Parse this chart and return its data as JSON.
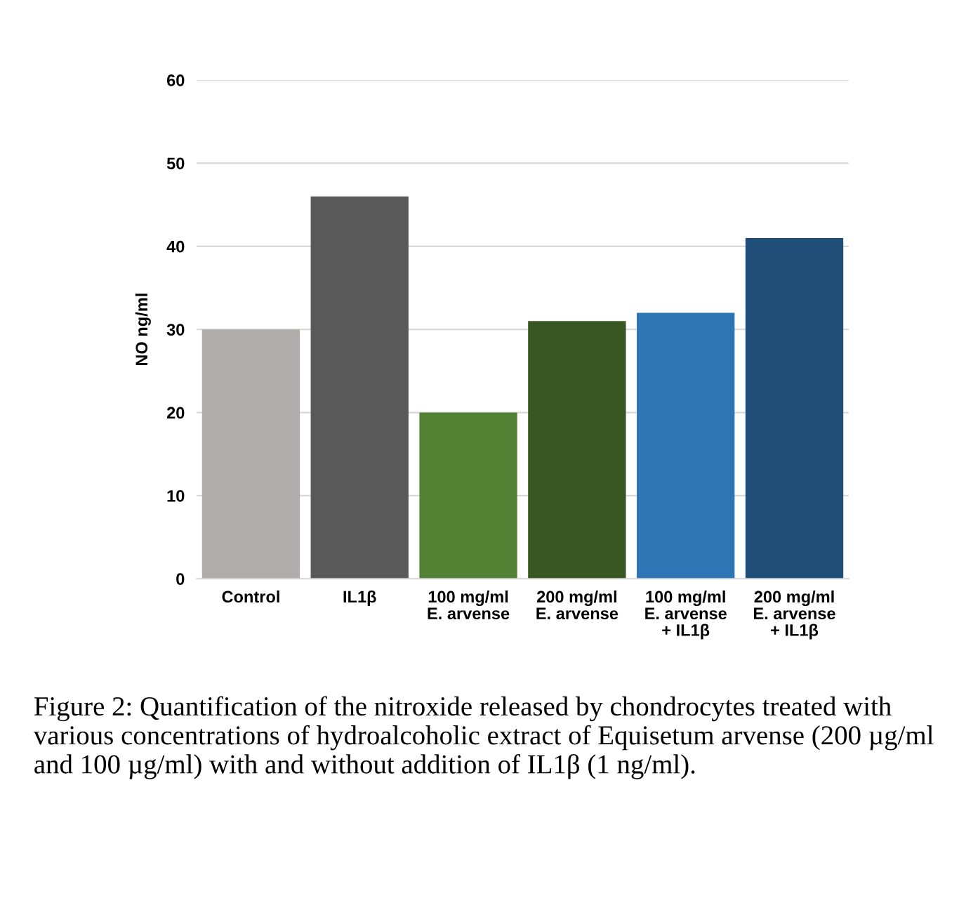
{
  "chart_data": {
    "type": "bar",
    "ylabel": "NO ng/ml",
    "categories": [
      "Control",
      "IL1β",
      "100 mg/ml\nE. arvense",
      "200 mg/ml\nE. arvense",
      "100 mg/ml\nE. arvense\n+ IL1β",
      "200 mg/ml\nE. arvense\n+ IL1β"
    ],
    "values": [
      30,
      46,
      20,
      31,
      32,
      41
    ],
    "colors": [
      "#b0acab",
      "#595959",
      "#548235",
      "#385723",
      "#2e75b6",
      "#1f4e79"
    ],
    "ylim": [
      0,
      60
    ],
    "yticks": [
      0,
      10,
      20,
      30,
      40,
      50,
      60
    ],
    "grid": "y",
    "annotations": [
      "Figure 2: Quantification of the nitroxide released by chondrocytes treated with various concentrations of hydroalcoholic extract of Equisetum arvense (200 µg/ml and 100 µg/ml) with and without addition of IL1β (1 ng/ml)."
    ]
  }
}
